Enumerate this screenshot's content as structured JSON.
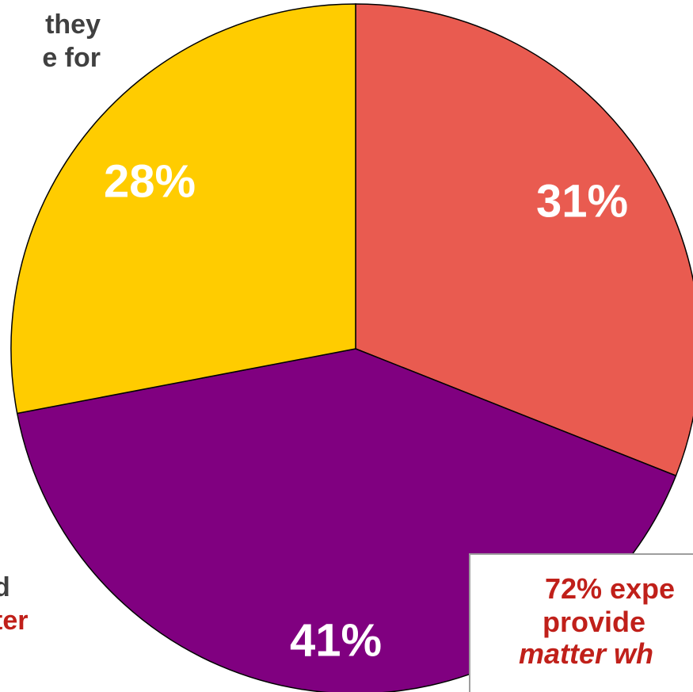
{
  "chart_data": {
    "type": "pie",
    "slices": [
      {
        "label": "31%",
        "value": 31,
        "color": "#e95b50"
      },
      {
        "label": "41%",
        "value": 41,
        "color": "#800080"
      },
      {
        "label": "28%",
        "value": 28,
        "color": "#ffcc00"
      }
    ],
    "start_angle_deg": 0,
    "direction": "clockwise",
    "outline_color": "#000000"
  },
  "annotations": {
    "top_left": [
      "they",
      "e for"
    ],
    "bottom_left": {
      "line1": "d",
      "line2": "ter"
    },
    "callout": {
      "line1": "72% expe",
      "line2": "provide",
      "line3": "matter wh"
    }
  }
}
